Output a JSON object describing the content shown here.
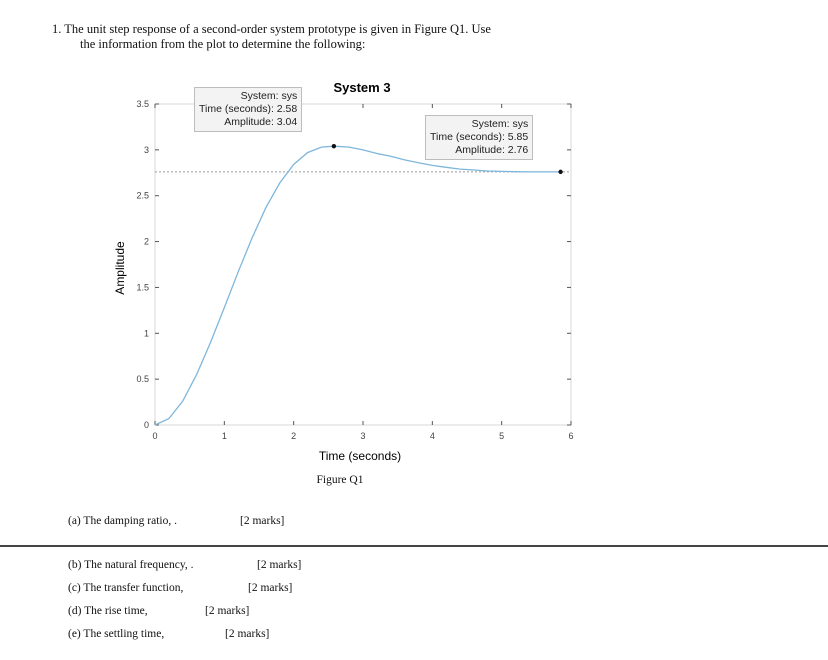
{
  "question": {
    "line1": "1. The unit step response of a second-order system prototype is given in Figure Q1. Use",
    "line2": "the information from the plot to determine the following:"
  },
  "figure_caption": "Figure Q1",
  "datatips": [
    {
      "line1": "System: sys",
      "line2": "Time (seconds): 2.58",
      "line3": "Amplitude: 3.04"
    },
    {
      "line1": "System: sys",
      "line2": "Time (seconds): 5.85",
      "line3": "Amplitude: 2.76"
    }
  ],
  "parts": [
    {
      "label": "(a) The damping ratio, .",
      "marks": "[2 marks]"
    },
    {
      "label": "(b) The natural frequency, .",
      "marks": "[2 marks]"
    },
    {
      "label": "(c) The transfer function,",
      "marks": "[2 marks]"
    },
    {
      "label": "(d) The rise time,",
      "marks": "[2 marks]"
    },
    {
      "label": "(e) The settling time,",
      "marks": "[2 marks]"
    }
  ],
  "chart_data": {
    "type": "line",
    "title": "System 3",
    "xlabel": "Time (seconds)",
    "ylabel": "Amplitude",
    "xlim": [
      0,
      6
    ],
    "ylim": [
      0,
      3.5
    ],
    "xticks": [
      "0",
      "1",
      "2",
      "3",
      "4",
      "5",
      "6"
    ],
    "yticks": [
      "0",
      "0.5",
      "1",
      "1.5",
      "2",
      "2.5",
      "3",
      "3.5"
    ],
    "grid": false,
    "line_color": "#7eb6dc",
    "steady_state": 2.76,
    "series": [
      {
        "x": [
          0,
          0.2,
          0.4,
          0.6,
          0.8,
          1.0,
          1.2,
          1.4,
          1.6,
          1.8,
          2.0,
          2.2,
          2.4,
          2.58,
          2.8,
          3.0,
          3.2,
          3.4,
          3.6,
          3.8,
          4.0,
          4.2,
          4.4,
          4.6,
          4.8,
          5.0,
          5.2,
          5.4,
          5.6,
          5.85
        ],
        "y": [
          0,
          0.07,
          0.26,
          0.55,
          0.9,
          1.28,
          1.67,
          2.04,
          2.37,
          2.64,
          2.84,
          2.97,
          3.03,
          3.04,
          3.03,
          3.0,
          2.96,
          2.93,
          2.89,
          2.86,
          2.83,
          2.81,
          2.79,
          2.78,
          2.77,
          2.765,
          2.762,
          2.76,
          2.76,
          2.76
        ]
      }
    ],
    "markers": [
      {
        "x": 2.58,
        "y": 3.04
      },
      {
        "x": 5.85,
        "y": 2.76
      }
    ]
  }
}
